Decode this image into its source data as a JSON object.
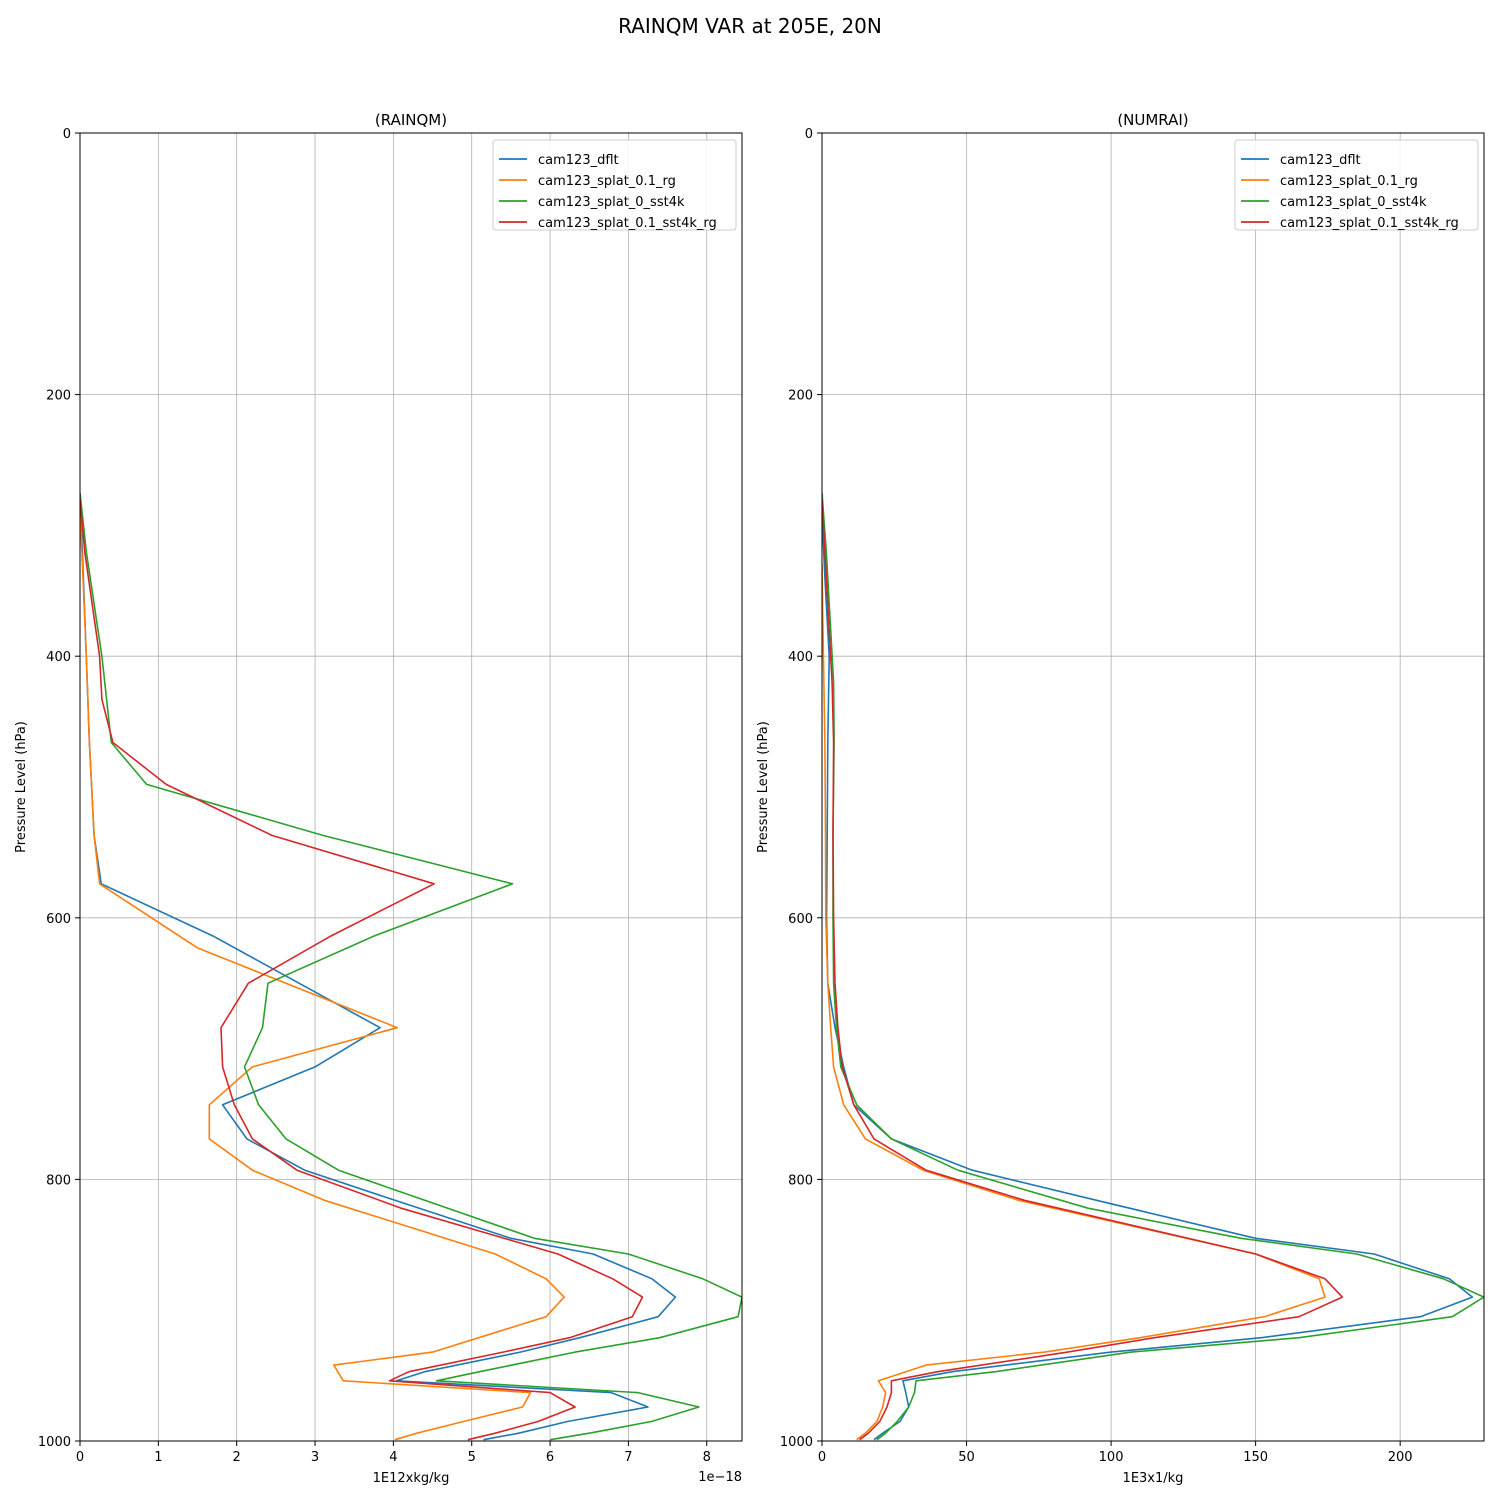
{
  "figure_title": "RAINQM VAR at 205E, 20N",
  "colors": {
    "cam123_dflt": "#1f77b4",
    "cam123_splat_0.1_rg": "#ff7f0e",
    "cam123_splat_0_sst4k": "#2ca02c",
    "cam123_splat_0.1_sst4k_rg": "#d62728"
  },
  "chart_data": [
    {
      "type": "line",
      "title": "(RAINQM)",
      "xlabel": "1E12xkg/kg",
      "ylabel": "Pressure Level (hPa)",
      "offset_text": "1e−18",
      "xlim": [
        0,
        8.45
      ],
      "ylim": [
        1000,
        0
      ],
      "xticks": [
        "0",
        "1",
        "2",
        "3",
        "4",
        "5",
        "6",
        "7",
        "8"
      ],
      "yticks": [
        "0",
        "200",
        "400",
        "600",
        "800",
        "1000"
      ],
      "grid": true,
      "legend_position": "upper-right",
      "series": [
        {
          "name": "cam123_dflt",
          "points": [
            [
              0,
              280
            ],
            [
              0.03,
              320
            ],
            [
              0.08,
              400
            ],
            [
              0.12,
              466
            ],
            [
              0.18,
              537
            ],
            [
              0.27,
              574
            ],
            [
              1.7,
              614
            ],
            [
              3.83,
              684
            ],
            [
              3.0,
              714
            ],
            [
              1.82,
              743
            ],
            [
              2.13,
              769
            ],
            [
              2.87,
              793
            ],
            [
              4.02,
              816
            ],
            [
              5.5,
              845
            ],
            [
              6.55,
              857
            ],
            [
              7.3,
              876
            ],
            [
              7.6,
              890
            ],
            [
              7.38,
              905
            ],
            [
              6.38,
              921
            ],
            [
              5.62,
              932
            ],
            [
              4.4,
              947
            ],
            [
              4.04,
              954
            ],
            [
              6.78,
              963
            ],
            [
              7.25,
              974
            ],
            [
              6.23,
              985
            ],
            [
              5.6,
              994
            ],
            [
              5.15,
              999
            ]
          ]
        },
        {
          "name": "cam123_splat_0.1_rg",
          "points": [
            [
              0,
              290
            ],
            [
              0.03,
              330
            ],
            [
              0.08,
              400
            ],
            [
              0.12,
              466
            ],
            [
              0.18,
              537
            ],
            [
              0.25,
              574
            ],
            [
              1.5,
              623
            ],
            [
              4.05,
              684
            ],
            [
              2.2,
              714
            ],
            [
              1.65,
              743
            ],
            [
              1.65,
              769
            ],
            [
              2.2,
              793
            ],
            [
              3.12,
              816
            ],
            [
              5.3,
              857
            ],
            [
              5.95,
              876
            ],
            [
              6.18,
              890
            ],
            [
              5.95,
              905
            ],
            [
              4.5,
              932
            ],
            [
              3.24,
              942
            ],
            [
              3.36,
              954
            ],
            [
              5.75,
              963
            ],
            [
              5.65,
              974
            ],
            [
              4.9,
              985
            ],
            [
              4.3,
              994
            ],
            [
              4.02,
              999
            ]
          ]
        },
        {
          "name": "cam123_splat_0_sst4k",
          "points": [
            [
              0,
              275
            ],
            [
              0.08,
              320
            ],
            [
              0.28,
              400
            ],
            [
              0.4,
              466
            ],
            [
              0.85,
              498
            ],
            [
              3.1,
              537
            ],
            [
              5.52,
              574
            ],
            [
              3.75,
              614
            ],
            [
              2.4,
              650
            ],
            [
              2.33,
              684
            ],
            [
              2.1,
              714
            ],
            [
              2.28,
              743
            ],
            [
              2.63,
              769
            ],
            [
              3.3,
              793
            ],
            [
              4.4,
              816
            ],
            [
              5.8,
              845
            ],
            [
              7.0,
              857
            ],
            [
              7.95,
              876
            ],
            [
              8.45,
              890
            ],
            [
              8.4,
              905
            ],
            [
              7.4,
              921
            ],
            [
              6.32,
              932
            ],
            [
              5.1,
              947
            ],
            [
              4.55,
              954
            ],
            [
              7.12,
              963
            ],
            [
              7.9,
              974
            ],
            [
              7.3,
              985
            ],
            [
              6.5,
              994
            ],
            [
              6.0,
              999
            ]
          ]
        },
        {
          "name": "cam123_splat_0.1_sst4k_rg",
          "points": [
            [
              0,
              280
            ],
            [
              0.06,
              320
            ],
            [
              0.25,
              400
            ],
            [
              0.28,
              433
            ],
            [
              0.42,
              466
            ],
            [
              1.1,
              498
            ],
            [
              2.45,
              537
            ],
            [
              4.52,
              574
            ],
            [
              3.2,
              614
            ],
            [
              2.15,
              650
            ],
            [
              1.8,
              684
            ],
            [
              1.82,
              714
            ],
            [
              1.97,
              743
            ],
            [
              2.2,
              769
            ],
            [
              2.77,
              793
            ],
            [
              4.1,
              822
            ],
            [
              6.1,
              857
            ],
            [
              6.8,
              876
            ],
            [
              7.18,
              890
            ],
            [
              7.05,
              905
            ],
            [
              6.25,
              921
            ],
            [
              5.4,
              932
            ],
            [
              4.2,
              947
            ],
            [
              3.95,
              954
            ],
            [
              6.0,
              963
            ],
            [
              6.32,
              974
            ],
            [
              5.85,
              985
            ],
            [
              5.3,
              994
            ],
            [
              4.95,
              999
            ]
          ]
        }
      ]
    },
    {
      "type": "line",
      "title": "(NUMRAI)",
      "xlabel": "1E3x1/kg",
      "ylabel": "Pressure Level (hPa)",
      "offset_text": "",
      "xlim": [
        0,
        229
      ],
      "ylim": [
        1000,
        0
      ],
      "xticks": [
        "0",
        "50",
        "100",
        "150",
        "200"
      ],
      "yticks": [
        "0",
        "200",
        "400",
        "600",
        "800",
        "1000"
      ],
      "grid": true,
      "legend_position": "upper-right",
      "series": [
        {
          "name": "cam123_dflt",
          "points": [
            [
              0,
              290
            ],
            [
              1.0,
              340
            ],
            [
              2.5,
              400
            ],
            [
              2.0,
              466
            ],
            [
              1.8,
              537
            ],
            [
              1.6,
              600
            ],
            [
              2.0,
              650
            ],
            [
              4.5,
              684
            ],
            [
              7.5,
              714
            ],
            [
              11.0,
              743
            ],
            [
              24.0,
              769
            ],
            [
              52.0,
              793
            ],
            [
              95.0,
              816
            ],
            [
              150.0,
              845
            ],
            [
              191.0,
              857
            ],
            [
              217.0,
              876
            ],
            [
              225.0,
              890
            ],
            [
              207.0,
              905
            ],
            [
              152.0,
              921
            ],
            [
              100.0,
              932
            ],
            [
              45.0,
              947
            ],
            [
              28.0,
              954
            ],
            [
              29.0,
              963
            ],
            [
              30.0,
              974
            ],
            [
              27.0,
              985
            ],
            [
              21.0,
              994
            ],
            [
              18.0,
              999
            ]
          ]
        },
        {
          "name": "cam123_splat_0.1_rg",
          "points": [
            [
              0,
              330
            ],
            [
              0.5,
              400
            ],
            [
              1.0,
              466
            ],
            [
              1.2,
              537
            ],
            [
              1.3,
              600
            ],
            [
              2.0,
              650
            ],
            [
              3.0,
              684
            ],
            [
              4.0,
              714
            ],
            [
              7.5,
              743
            ],
            [
              15.0,
              769
            ],
            [
              35.0,
              793
            ],
            [
              68.0,
              816
            ],
            [
              150.0,
              857
            ],
            [
              172.0,
              876
            ],
            [
              174.0,
              890
            ],
            [
              153.0,
              905
            ],
            [
              110.0,
              921
            ],
            [
              77.0,
              932
            ],
            [
              36.0,
              942
            ],
            [
              19.5,
              954
            ],
            [
              22.0,
              963
            ],
            [
              21.0,
              974
            ],
            [
              19.0,
              985
            ],
            [
              15.0,
              994
            ],
            [
              12.0,
              999
            ]
          ]
        },
        {
          "name": "cam123_splat_0_sst4k",
          "points": [
            [
              0,
              275
            ],
            [
              1.5,
              320
            ],
            [
              3.0,
              380
            ],
            [
              4.0,
              420
            ],
            [
              4.2,
              466
            ],
            [
              3.8,
              537
            ],
            [
              3.8,
              600
            ],
            [
              4.0,
              650
            ],
            [
              5.0,
              684
            ],
            [
              6.5,
              714
            ],
            [
              12.0,
              743
            ],
            [
              24.0,
              769
            ],
            [
              47.0,
              793
            ],
            [
              92.0,
              822
            ],
            [
              145.0,
              845
            ],
            [
              185.0,
              857
            ],
            [
              215.0,
              876
            ],
            [
              229.0,
              890
            ],
            [
              218.0,
              905
            ],
            [
              165.0,
              921
            ],
            [
              107.0,
              932
            ],
            [
              60.0,
              947
            ],
            [
              32.5,
              954
            ],
            [
              32.0,
              963
            ],
            [
              30.0,
              974
            ],
            [
              26.0,
              985
            ],
            [
              22.0,
              994
            ],
            [
              19.0,
              999
            ]
          ]
        },
        {
          "name": "cam123_splat_0.1_sst4k_rg",
          "points": [
            [
              0,
              280
            ],
            [
              1.0,
              320
            ],
            [
              2.5,
              380
            ],
            [
              3.5,
              420
            ],
            [
              4.0,
              466
            ],
            [
              3.8,
              537
            ],
            [
              4.0,
              600
            ],
            [
              4.5,
              650
            ],
            [
              5.5,
              684
            ],
            [
              7.0,
              714
            ],
            [
              11.0,
              743
            ],
            [
              18.0,
              769
            ],
            [
              36.0,
              793
            ],
            [
              70.0,
              816
            ],
            [
              150.0,
              857
            ],
            [
              174.0,
              876
            ],
            [
              180.0,
              890
            ],
            [
              165.0,
              905
            ],
            [
              115.0,
              921
            ],
            [
              85.0,
              932
            ],
            [
              40.0,
              947
            ],
            [
              24.0,
              954
            ],
            [
              24.0,
              963
            ],
            [
              22.5,
              974
            ],
            [
              20.0,
              985
            ],
            [
              16.0,
              994
            ],
            [
              13.0,
              999
            ]
          ]
        }
      ]
    }
  ]
}
